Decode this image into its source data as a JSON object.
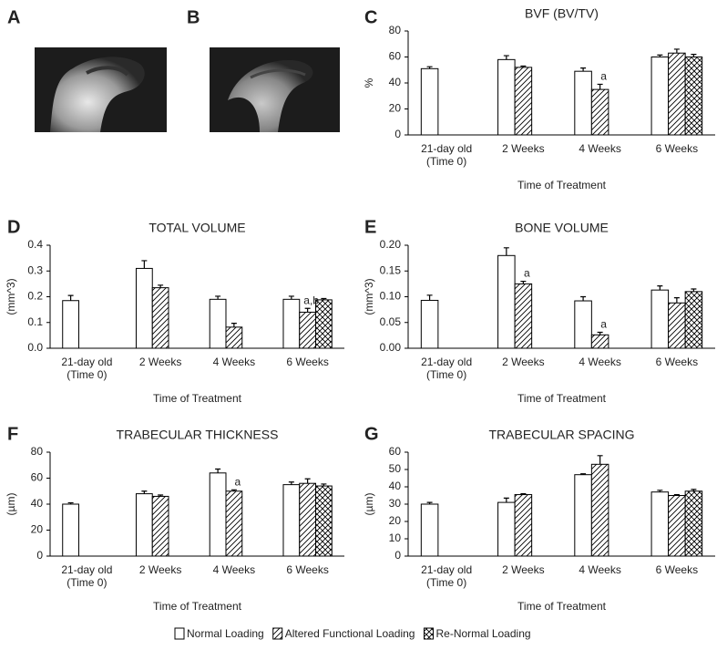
{
  "images": [
    {
      "panel": "A"
    },
    {
      "panel": "B"
    }
  ],
  "chart_data": [
    {
      "type": "bar",
      "panel": "C",
      "title": "BVF (BV/TV)",
      "y_label": "%",
      "x_label": "Time of Treatment",
      "categories": [
        "21-day old\n(Time 0)",
        "2 Weeks",
        "4 Weeks",
        "6 Weeks"
      ],
      "ylim": [
        0,
        80
      ],
      "yticks": [
        0,
        20,
        40,
        60,
        80
      ],
      "grid": false,
      "series": [
        {
          "name": "Normal Loading",
          "color": "#000000",
          "pattern": "none",
          "values": [
            51,
            58,
            49,
            60
          ],
          "errors": [
            1.5,
            3,
            2.5,
            1.5
          ]
        },
        {
          "name": "Altered Functional Loading",
          "color": "#000000",
          "pattern": "diagonal",
          "values": [
            null,
            52,
            35,
            63
          ],
          "errors": [
            null,
            1,
            4,
            3
          ]
        },
        {
          "name": "Re-Normal Loading",
          "color": "#000000",
          "pattern": "cross",
          "values": [
            null,
            null,
            null,
            60
          ],
          "errors": [
            null,
            null,
            null,
            2
          ]
        }
      ],
      "annotations": [
        {
          "text": "a",
          "series": 1,
          "index": 2
        }
      ]
    },
    {
      "type": "bar",
      "panel": "D",
      "title": "TOTAL VOLUME",
      "y_label": "(mm^3)",
      "x_label": "Time of Treatment",
      "categories": [
        "21-day old\n(Time 0)",
        "2 Weeks",
        "4 Weeks",
        "6 Weeks"
      ],
      "ylim": [
        0,
        0.4
      ],
      "yticks": [
        {
          "value": 0,
          "label": "0.0"
        },
        0.1,
        0.2,
        0.3,
        0.4
      ],
      "grid": false,
      "series": [
        {
          "name": "Normal Loading",
          "color": "#000000",
          "pattern": "none",
          "values": [
            0.185,
            0.31,
            0.19,
            0.19
          ],
          "errors": [
            0.02,
            0.03,
            0.012,
            0.012
          ]
        },
        {
          "name": "Altered Functional Loading",
          "color": "#000000",
          "pattern": "diagonal",
          "values": [
            null,
            0.235,
            0.082,
            0.14
          ],
          "errors": [
            null,
            0.01,
            0.015,
            0.015
          ]
        },
        {
          "name": "Re-Normal Loading",
          "color": "#000000",
          "pattern": "cross",
          "values": [
            null,
            null,
            null,
            0.188
          ],
          "errors": [
            null,
            null,
            null,
            0.005
          ]
        }
      ],
      "annotations": [
        {
          "text": "a,b",
          "series": 1,
          "index": 3
        }
      ]
    },
    {
      "type": "bar",
      "panel": "E",
      "title": "BONE VOLUME",
      "y_label": "(mm^3)",
      "x_label": "Time of Treatment",
      "categories": [
        "21-day old\n(Time 0)",
        "2 Weeks",
        "4 Weeks",
        "6 Weeks"
      ],
      "ylim": [
        0,
        0.2
      ],
      "yticks": [
        {
          "value": 0,
          "label": "0.00"
        },
        {
          "value": 0.05,
          "label": "0.05"
        },
        {
          "value": 0.1,
          "label": "0.10"
        },
        {
          "value": 0.15,
          "label": "0.15"
        },
        {
          "value": 0.2,
          "label": "0.20"
        }
      ],
      "grid": false,
      "series": [
        {
          "name": "Normal Loading",
          "color": "#000000",
          "pattern": "none",
          "values": [
            0.093,
            0.18,
            0.092,
            0.113
          ],
          "errors": [
            0.01,
            0.015,
            0.008,
            0.008
          ]
        },
        {
          "name": "Altered Functional Loading",
          "color": "#000000",
          "pattern": "diagonal",
          "values": [
            null,
            0.125,
            0.026,
            0.088
          ],
          "errors": [
            null,
            0.005,
            0.005,
            0.01
          ]
        },
        {
          "name": "Re-Normal Loading",
          "color": "#000000",
          "pattern": "cross",
          "values": [
            null,
            null,
            null,
            0.11
          ],
          "errors": [
            null,
            null,
            null,
            0.005
          ]
        }
      ],
      "annotations": [
        {
          "text": "a",
          "series": 1,
          "index": 1
        },
        {
          "text": "a",
          "series": 1,
          "index": 2
        }
      ]
    },
    {
      "type": "bar",
      "panel": "F",
      "title": "TRABECULAR THICKNESS",
      "y_label": "(µm)",
      "x_label": "Time of Treatment",
      "categories": [
        "21-day old\n(Time 0)",
        "2 Weeks",
        "4 Weeks",
        "6 Weeks"
      ],
      "ylim": [
        0,
        80
      ],
      "yticks": [
        0,
        20,
        40,
        60,
        80
      ],
      "grid": false,
      "series": [
        {
          "name": "Normal Loading",
          "color": "#000000",
          "pattern": "none",
          "values": [
            40,
            48,
            64,
            55
          ],
          "errors": [
            1,
            2,
            3,
            2
          ]
        },
        {
          "name": "Altered Functional Loading",
          "color": "#000000",
          "pattern": "diagonal",
          "values": [
            null,
            46,
            50,
            56
          ],
          "errors": [
            null,
            1,
            1,
            3.5
          ]
        },
        {
          "name": "Re-Normal Loading",
          "color": "#000000",
          "pattern": "cross",
          "values": [
            null,
            null,
            null,
            54
          ],
          "errors": [
            null,
            null,
            null,
            1.5
          ]
        }
      ],
      "annotations": [
        {
          "text": "a",
          "series": 1,
          "index": 2
        }
      ]
    },
    {
      "type": "bar",
      "panel": "G",
      "title": "TRABECULAR SPACING",
      "y_label": "(µm)",
      "x_label": "Time of Treatment",
      "categories": [
        "21-day old\n(Time 0)",
        "2 Weeks",
        "4 Weeks",
        "6 Weeks"
      ],
      "ylim": [
        0,
        60
      ],
      "yticks": [
        0,
        10,
        20,
        30,
        40,
        50,
        60
      ],
      "grid": false,
      "series": [
        {
          "name": "Normal Loading",
          "color": "#000000",
          "pattern": "none",
          "values": [
            30,
            31,
            47,
            37
          ],
          "errors": [
            1,
            2.5,
            0.5,
            1
          ]
        },
        {
          "name": "Altered Functional Loading",
          "color": "#000000",
          "pattern": "diagonal",
          "values": [
            null,
            35.5,
            53,
            35
          ],
          "errors": [
            null,
            0.5,
            5,
            0.5
          ]
        },
        {
          "name": "Re-Normal Loading",
          "color": "#000000",
          "pattern": "cross",
          "values": [
            null,
            null,
            null,
            37.5
          ],
          "errors": [
            null,
            null,
            null,
            1
          ]
        }
      ],
      "annotations": []
    }
  ]
}
